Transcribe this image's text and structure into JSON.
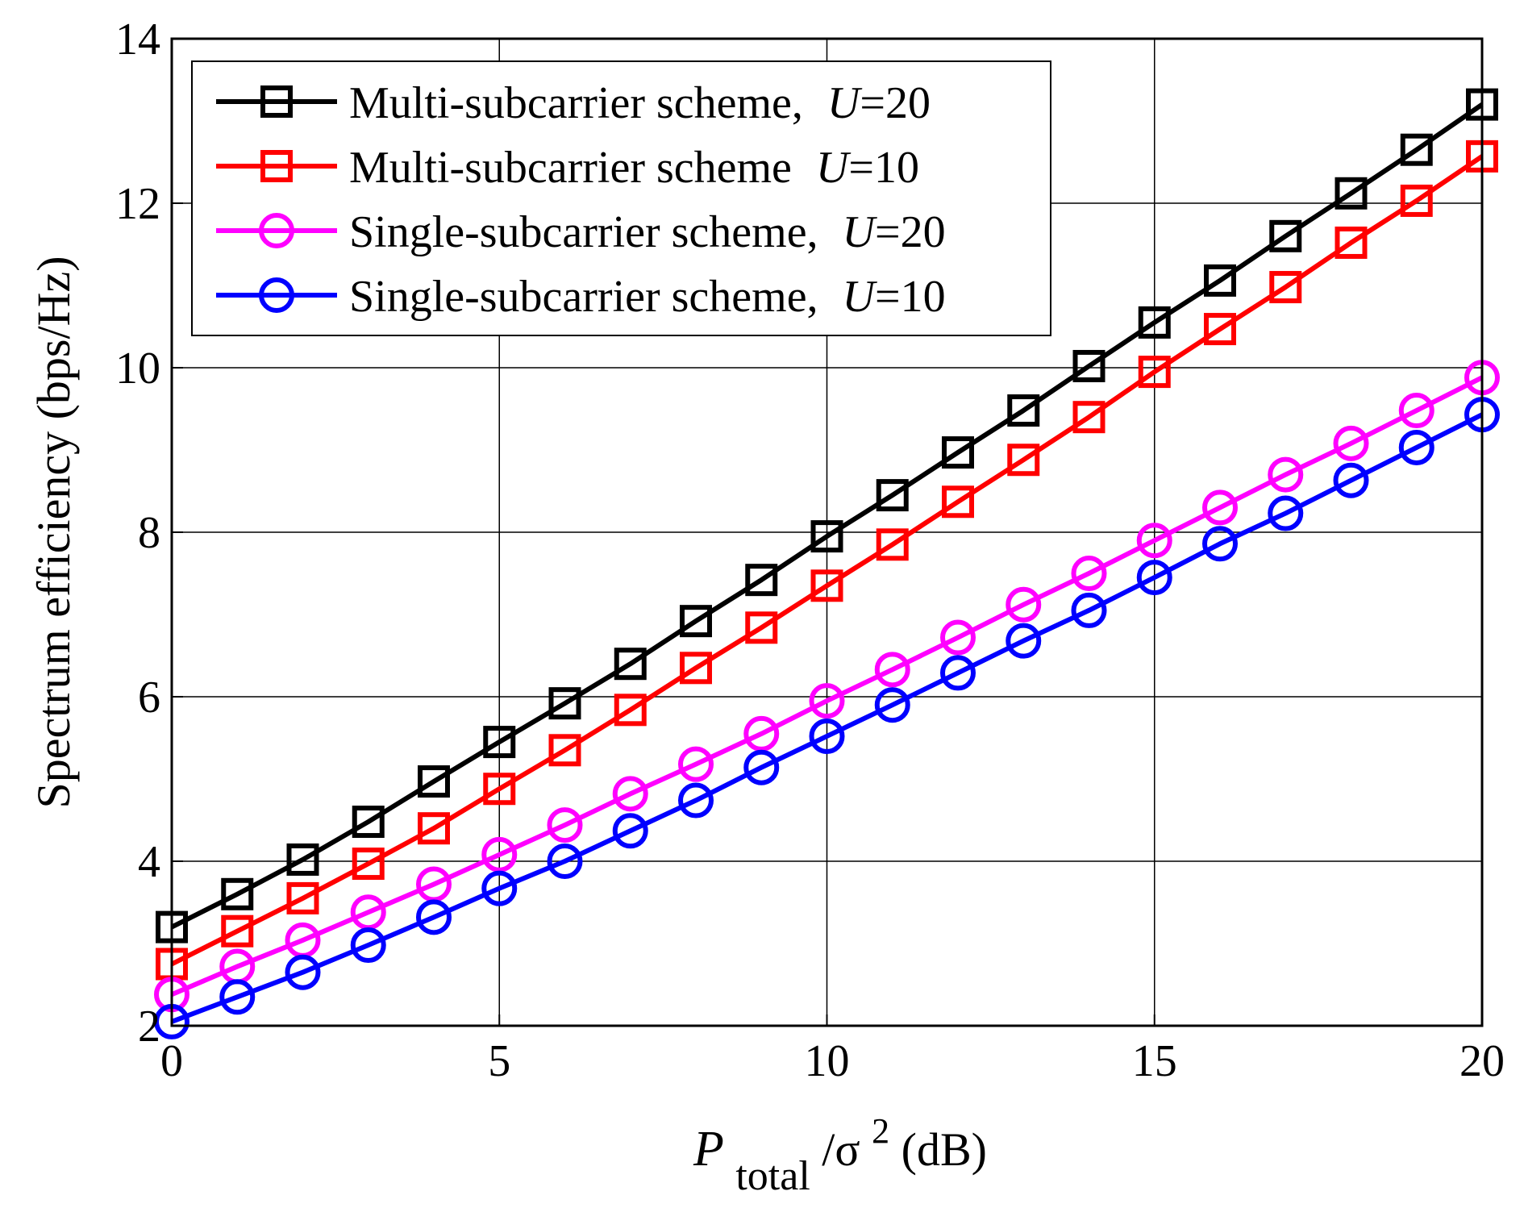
{
  "chart_data": {
    "type": "line",
    "title": "",
    "xlabel": {
      "symbol": "P",
      "subscript": "total",
      "rest": "/σ",
      "superscript": "2",
      "unit": " (dB)"
    },
    "ylabel": "Spectrum efficiency (bps/Hz)",
    "xlim": [
      0,
      20
    ],
    "ylim": [
      2,
      14
    ],
    "x_ticks": [
      "0",
      "5",
      "10",
      "15",
      "20"
    ],
    "y_ticks": [
      "2",
      "4",
      "6",
      "8",
      "10",
      "12",
      "14"
    ],
    "grid": true,
    "legend_position": "top-left",
    "x": [
      0,
      1,
      2,
      3,
      4,
      5,
      6,
      7,
      8,
      9,
      10,
      11,
      12,
      13,
      14,
      15,
      16,
      17,
      18,
      19,
      20
    ],
    "series": [
      {
        "name": "Multi-subcarrier scheme,",
        "label_main": "Multi-subcarrier scheme,",
        "label_var": "U",
        "label_val": "=20",
        "color": "#000000",
        "marker": "square",
        "values": [
          3.2,
          3.6,
          4.02,
          4.48,
          4.97,
          5.45,
          5.92,
          6.4,
          6.92,
          7.42,
          7.95,
          8.45,
          8.97,
          9.48,
          10.02,
          10.55,
          11.06,
          11.6,
          12.12,
          12.65,
          13.2
        ]
      },
      {
        "name": "Multi-subcarrier scheme",
        "label_main": "Multi-subcarrier scheme",
        "label_var": "U",
        "label_val": "=10",
        "color": "#ff0000",
        "marker": "square",
        "values": [
          2.75,
          3.15,
          3.55,
          3.97,
          4.4,
          4.88,
          5.35,
          5.84,
          6.35,
          6.84,
          7.35,
          7.85,
          8.37,
          8.88,
          9.4,
          9.95,
          10.47,
          10.98,
          11.52,
          12.03,
          12.57
        ]
      },
      {
        "name": "Single-subcarrier scheme,",
        "label_main": "Single-subcarrier scheme,",
        "label_var": "U",
        "label_val": "=20",
        "color": "#ff00ff",
        "marker": "circle",
        "values": [
          2.38,
          2.72,
          3.04,
          3.38,
          3.72,
          4.08,
          4.44,
          4.82,
          5.18,
          5.55,
          5.95,
          6.33,
          6.72,
          7.12,
          7.5,
          7.9,
          8.3,
          8.7,
          9.08,
          9.48,
          9.88
        ]
      },
      {
        "name": "Single-subcarrier scheme,",
        "label_main": "Single-subcarrier scheme,",
        "label_var": "U",
        "label_val": "=10",
        "color": "#0000ff",
        "marker": "circle",
        "values": [
          2.05,
          2.35,
          2.65,
          2.98,
          3.32,
          3.67,
          4.0,
          4.37,
          4.74,
          5.14,
          5.52,
          5.9,
          6.29,
          6.68,
          7.05,
          7.45,
          7.86,
          8.23,
          8.63,
          9.03,
          9.43
        ]
      }
    ]
  }
}
